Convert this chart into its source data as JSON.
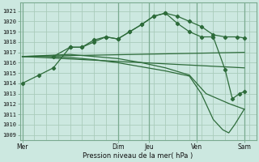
{
  "xlabel": "Pression niveau de la mer( hPa )",
  "background_color": "#cce8e0",
  "grid_color": "#aaccbb",
  "line_color": "#2d6b3a",
  "ylim": [
    1008.5,
    1021.8
  ],
  "yticks": [
    1009,
    1010,
    1011,
    1012,
    1013,
    1014,
    1015,
    1016,
    1017,
    1018,
    1019,
    1020,
    1021
  ],
  "day_labels": [
    "Mer",
    "Dim",
    "Jeu",
    "Ven",
    "Sam"
  ],
  "day_positions": [
    0,
    4,
    5.3,
    7.3,
    9.3
  ],
  "xlim": [
    -0.1,
    9.8
  ],
  "vlines": [
    0,
    4,
    5.3,
    7.3,
    9.3
  ],
  "line1_marked": {
    "x": [
      0,
      0.7,
      1.3,
      2.0,
      2.5,
      3.0,
      3.5,
      4.0,
      4.5,
      5.0,
      5.5,
      6.0,
      6.5,
      7.0,
      7.5,
      8.0,
      8.5,
      9.0,
      9.3
    ],
    "y": [
      1014.0,
      1014.8,
      1015.5,
      1017.5,
      1017.5,
      1018.2,
      1018.5,
      1018.3,
      1019.0,
      1019.7,
      1020.5,
      1020.8,
      1020.5,
      1020.0,
      1019.5,
      1018.7,
      1018.5,
      1018.5,
      1018.4
    ],
    "marker": "D",
    "markersize": 2.2
  },
  "line2_flat": {
    "x": [
      0,
      9.3
    ],
    "y": [
      1016.6,
      1017.0
    ]
  },
  "line3_declining": {
    "x": [
      0,
      9.3
    ],
    "y": [
      1016.6,
      1015.5
    ]
  },
  "line4_steep_decline": {
    "x": [
      0,
      2.0,
      4.0,
      5.0,
      6.0,
      7.0,
      7.7,
      8.2,
      8.7,
      9.3
    ],
    "y": [
      1016.6,
      1016.8,
      1016.4,
      1016.0,
      1015.5,
      1014.8,
      1013.0,
      1012.5,
      1012.0,
      1011.5
    ]
  },
  "line5_marked": {
    "x": [
      1.3,
      2.0,
      2.5,
      3.0,
      3.5,
      4.0,
      4.5,
      5.0,
      5.5,
      6.0,
      6.5,
      7.0,
      7.5,
      8.0,
      8.5,
      8.8,
      9.1,
      9.3
    ],
    "y": [
      1016.6,
      1017.5,
      1017.5,
      1018.0,
      1018.5,
      1018.3,
      1019.0,
      1019.7,
      1020.5,
      1020.8,
      1019.8,
      1019.0,
      1018.5,
      1018.5,
      1015.3,
      1012.5,
      1013.0,
      1013.2
    ],
    "marker": "D",
    "markersize": 2.2
  },
  "line6_drop": {
    "x": [
      0,
      1.0,
      2.0,
      3.0,
      4.0,
      5.0,
      6.0,
      7.0,
      7.5,
      8.0,
      8.4,
      8.65,
      8.9,
      9.3
    ],
    "y": [
      1016.6,
      1016.6,
      1016.5,
      1016.3,
      1016.0,
      1015.6,
      1015.2,
      1014.7,
      1013.0,
      1010.5,
      1009.5,
      1009.2,
      1010.0,
      1011.5
    ]
  }
}
